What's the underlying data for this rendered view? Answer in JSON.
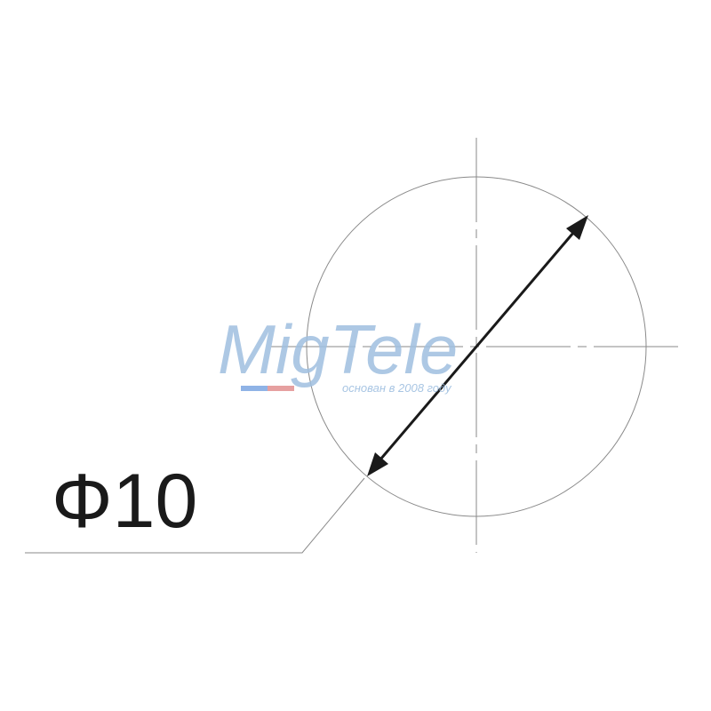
{
  "dimension": {
    "label": "Φ10"
  },
  "watermark": {
    "brand": "MigTele",
    "tagline": "основан в 2008 году",
    "color_text": "#9fbfe0",
    "color_flag_blue": "#8fb3e6",
    "color_flag_red": "#e6a0a0"
  },
  "colors": {
    "line": "#8a8a8a",
    "arrow": "#1a1a1a",
    "background": "#ffffff"
  }
}
